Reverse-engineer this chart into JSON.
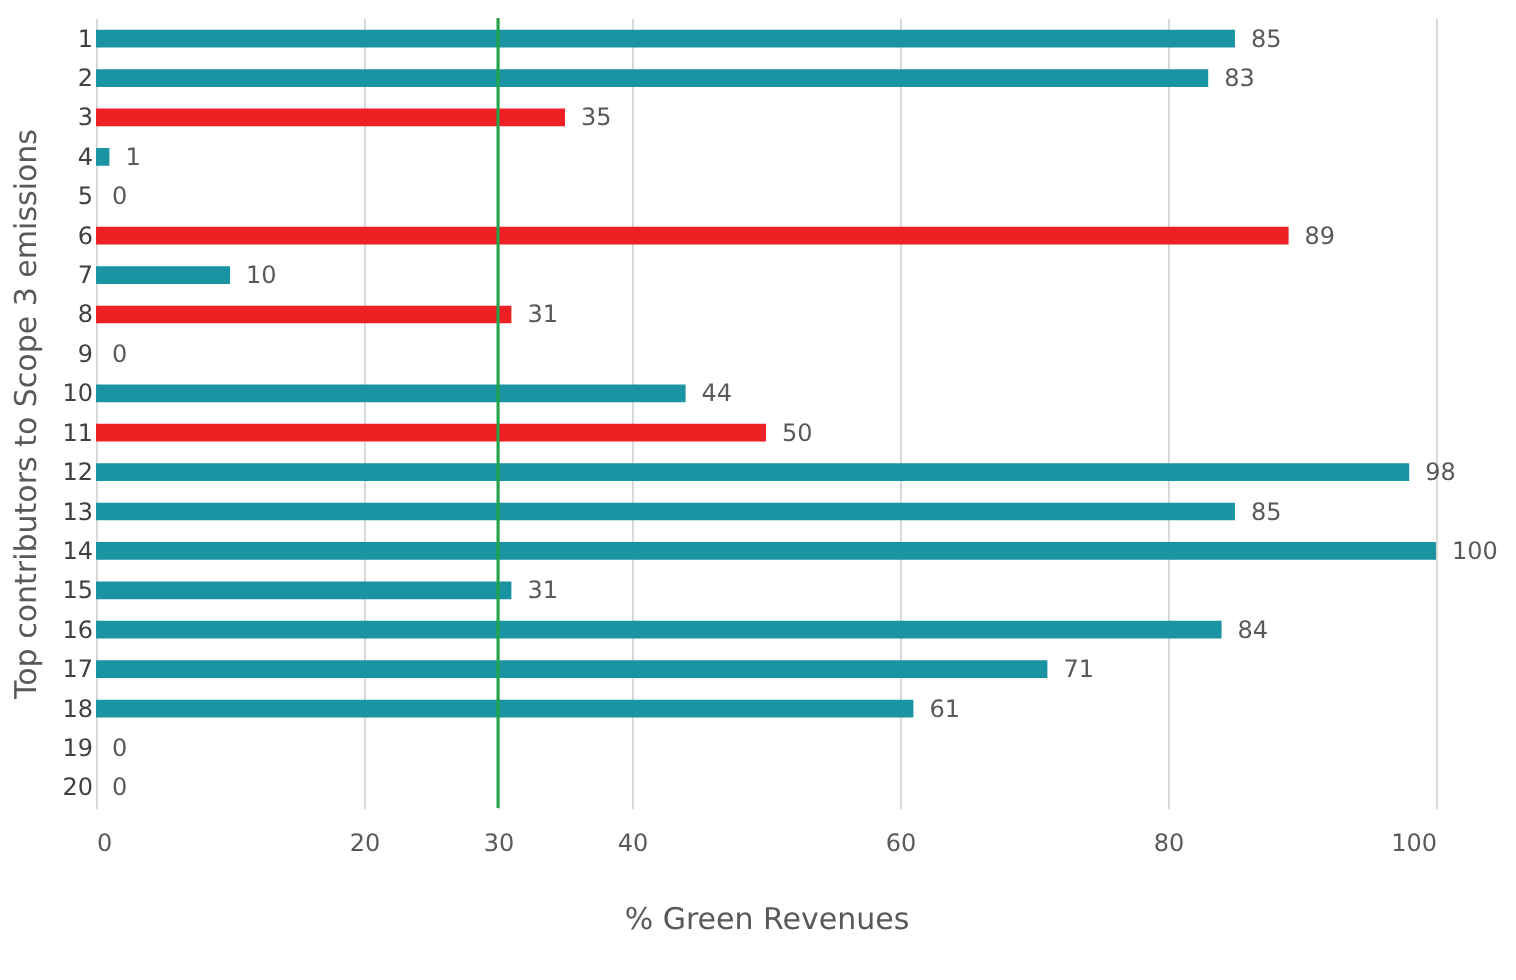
{
  "chart_data": {
    "type": "bar",
    "orientation": "horizontal",
    "xlabel": "% Green Revenues",
    "ylabel": "Top contributors to Scope 3 emissions",
    "categories": [
      "1",
      "2",
      "3",
      "4",
      "5",
      "6",
      "7",
      "8",
      "9",
      "10",
      "11",
      "12",
      "13",
      "14",
      "15",
      "16",
      "17",
      "18",
      "19",
      "20"
    ],
    "values": [
      85,
      83,
      35,
      1,
      0,
      89,
      10,
      31,
      0,
      44,
      50,
      98,
      85,
      100,
      31,
      84,
      71,
      61,
      0,
      0
    ],
    "colors": [
      "#1a93a3",
      "#1a93a3",
      "#ee2024",
      "#1a93a3",
      "#1a93a3",
      "#ee2024",
      "#1a93a3",
      "#ee2024",
      "#1a93a3",
      "#1a93a3",
      "#ee2024",
      "#1a93a3",
      "#1a93a3",
      "#1a93a3",
      "#1a93a3",
      "#1a93a3",
      "#1a93a3",
      "#1a93a3",
      "#1a93a3",
      "#1a93a3"
    ],
    "xlim": [
      0,
      100
    ],
    "xticks": [
      0,
      20,
      30,
      40,
      60,
      80,
      100
    ],
    "grid": "x",
    "data_labels": true,
    "ref_lines": [
      {
        "axis": "x",
        "value": 30,
        "color": "#1fa64a"
      }
    ]
  }
}
